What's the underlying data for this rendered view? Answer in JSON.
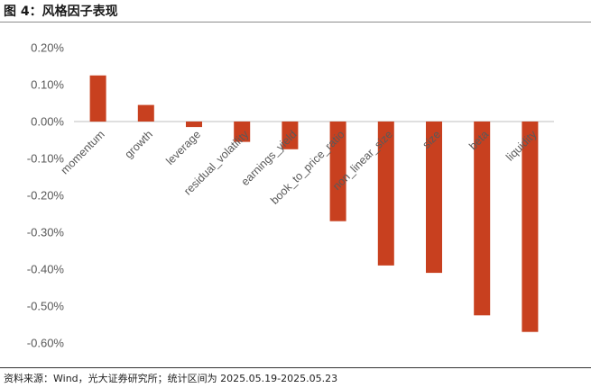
{
  "header": {
    "title": "图 4：风格因子表现"
  },
  "footer": {
    "source": "资料来源：Wind，光大证券研究所；统计区间为 2025.05.19-2025.05.23"
  },
  "chart_data": {
    "type": "bar",
    "title": "",
    "xlabel": "",
    "ylabel": "",
    "categories": [
      "momentum",
      "growth",
      "leverage",
      "residual_volatility",
      "earnings_yield",
      "book_to_price_ratio",
      "non_linear_size",
      "size",
      "beta",
      "liquidity"
    ],
    "values": [
      0.125,
      0.045,
      -0.015,
      -0.055,
      -0.075,
      -0.27,
      -0.39,
      -0.41,
      -0.525,
      -0.57
    ],
    "ylim": [
      -0.6,
      0.2
    ],
    "yticks": [
      0.2,
      0.1,
      0.0,
      -0.1,
      -0.2,
      -0.3,
      -0.4,
      -0.5,
      -0.6
    ],
    "ytick_labels": [
      "0.20%",
      "0.10%",
      "0.00%",
      "-0.10%",
      "-0.20%",
      "-0.30%",
      "-0.40%",
      "-0.50%",
      "-0.60%"
    ],
    "unit": "%",
    "grid": false,
    "bar_color": "#C8401F",
    "axis_color": "#BFBFBF"
  }
}
